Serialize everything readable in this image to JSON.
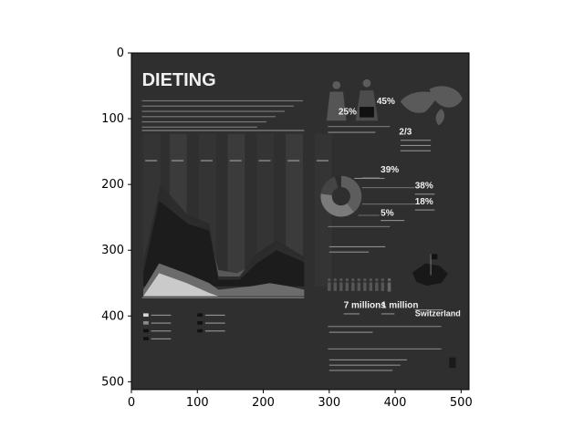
{
  "window": {
    "title": ""
  },
  "chart_data": {
    "type": "image",
    "title": "",
    "xlabel": "",
    "ylabel": "",
    "xlim": [
      0,
      512
    ],
    "ylim": [
      512,
      0
    ],
    "xticks": [
      0,
      100,
      200,
      300,
      400,
      500
    ],
    "yticks": [
      0,
      100,
      200,
      300,
      400,
      500
    ],
    "grid": false,
    "legend": "none",
    "colors": {
      "figure_bg": "#ffffff",
      "image_bg": "#2f2f2f",
      "axis": "#000000",
      "text_light": "#f0f0f0",
      "text_muted": "#9a9a9a",
      "panel": "#3a3a3a",
      "panel_dark": "#1c1c1c",
      "white_area": "#cfcfcf",
      "gray_area": "#707070",
      "dark_area": "#171717",
      "mid_area": "#545454"
    },
    "infographic": {
      "title": "DIETING",
      "stats": [
        {
          "label": "25%"
        },
        {
          "label": "45%"
        },
        {
          "label": "2/3"
        },
        {
          "label": "39%"
        },
        {
          "label": "38%"
        },
        {
          "label": "18%"
        },
        {
          "label": "5%"
        },
        {
          "label": "7 millions"
        },
        {
          "label": "1 million"
        },
        {
          "label": "Switzerland"
        }
      ]
    }
  }
}
